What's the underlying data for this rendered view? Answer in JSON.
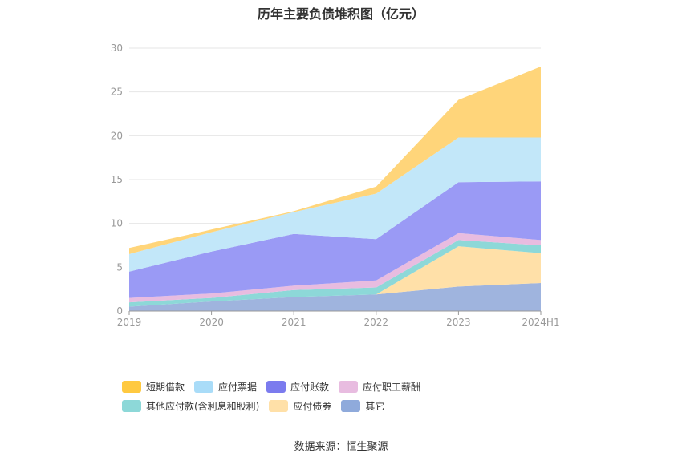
{
  "title": "历年主要负债堆积图（亿元）",
  "source": "数据来源：恒生聚源",
  "chart_data": {
    "type": "area",
    "stacked": true,
    "title": "历年主要负债堆积图（亿元）",
    "categories": [
      "2019",
      "2020",
      "2021",
      "2022",
      "2023",
      "2024H1"
    ],
    "ylim": [
      0,
      30
    ],
    "yticks": [
      "0",
      "5",
      "10",
      "15",
      "20",
      "25",
      "30"
    ],
    "grid": true,
    "legend_position": "bottom",
    "series": [
      {
        "name": "其它",
        "color": "#9FB4DE",
        "values": [
          0.5,
          1.1,
          1.6,
          1.9,
          2.8,
          3.2
        ]
      },
      {
        "name": "应付债券",
        "color": "#FFE0A8",
        "values": [
          0,
          0,
          0,
          0,
          4.6,
          3.4
        ]
      },
      {
        "name": "其他应付款(含利息和股利)",
        "color": "#8DD8D8",
        "values": [
          0.5,
          0.4,
          0.8,
          0.8,
          0.7,
          0.9
        ]
      },
      {
        "name": "应付职工薪酬",
        "color": "#E8BCE0",
        "values": [
          0.5,
          0.5,
          0.5,
          0.8,
          0.8,
          0.6
        ]
      },
      {
        "name": "应付账款",
        "color": "#9A9AF5",
        "values": [
          3.0,
          4.8,
          5.9,
          4.7,
          5.8,
          6.7
        ]
      },
      {
        "name": "应付票据",
        "color": "#C2E7F9",
        "values": [
          2.0,
          2.2,
          2.5,
          5.2,
          5.1,
          5.0
        ]
      },
      {
        "name": "短期借款",
        "color": "#FFD57A",
        "values": [
          0.7,
          0.3,
          0.1,
          0.8,
          4.3,
          8.1
        ]
      }
    ],
    "legend": [
      {
        "name": "短期借款",
        "color": "#FFC940"
      },
      {
        "name": "应付票据",
        "color": "#A9DCF8"
      },
      {
        "name": "应付账款",
        "color": "#7B7BEE"
      },
      {
        "name": "应付职工薪酬",
        "color": "#E8BCE0"
      },
      {
        "name": "其他应付款(含利息和股利)",
        "color": "#8DD8D8"
      },
      {
        "name": "应付债券",
        "color": "#FFE0A8"
      },
      {
        "name": "其它",
        "color": "#8FAADB"
      }
    ]
  }
}
